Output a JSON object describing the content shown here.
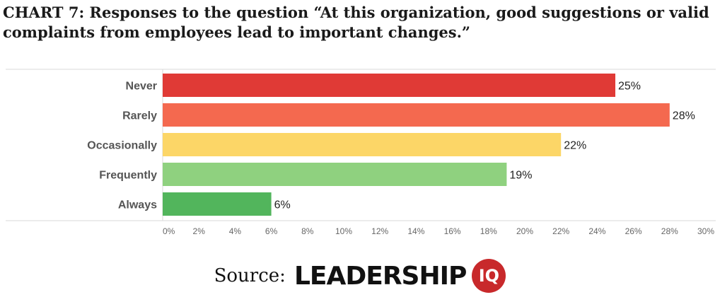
{
  "title_line1": "CHART 7: Responses to the question “At this organization, good suggestions or valid",
  "title_line2": "complaints from employees lead to important changes.”",
  "chart_data": {
    "type": "bar",
    "orientation": "horizontal",
    "categories": [
      "Never",
      "Rarely",
      "Occasionally",
      "Frequently",
      "Always"
    ],
    "values": [
      25,
      28,
      22,
      19,
      6
    ],
    "data_labels": [
      "25%",
      "28%",
      "22%",
      "19%",
      "6%"
    ],
    "colors": [
      "#e03a36",
      "#f4694f",
      "#fcd667",
      "#8fd17f",
      "#52b55c"
    ],
    "x_ticks": [
      0,
      2,
      4,
      6,
      8,
      10,
      12,
      14,
      16,
      18,
      20,
      22,
      24,
      26,
      28,
      30
    ],
    "x_tick_labels": [
      "0%",
      "2%",
      "4%",
      "6%",
      "8%",
      "10%",
      "12%",
      "14%",
      "16%",
      "18%",
      "20%",
      "22%",
      "24%",
      "26%",
      "28%",
      "30%"
    ],
    "xlim": [
      0,
      30
    ],
    "grid": false,
    "legend": "none"
  },
  "source": {
    "label": "Source:",
    "brand_word": "LEADERSHIP",
    "brand_badge": "IQ",
    "brand_color": "#c8292b"
  }
}
